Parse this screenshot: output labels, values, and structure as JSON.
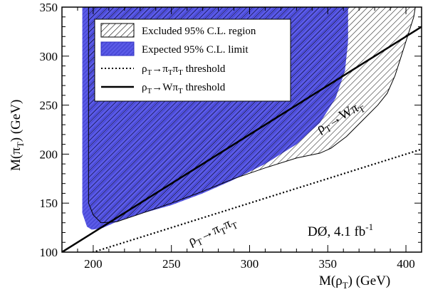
{
  "chart_data": {
    "type": "area",
    "xlim": [
      180,
      410
    ],
    "ylim": [
      100,
      350
    ],
    "x_ticks": [
      "200",
      "250",
      "300",
      "350",
      "400"
    ],
    "y_ticks": [
      "100",
      "150",
      "200",
      "250",
      "300",
      "350"
    ],
    "xlabel": {
      "main": "M(ρ",
      "sub": "T",
      "tail": ") (GeV)"
    },
    "ylabel": {
      "main": "M(π",
      "sub": "T",
      "tail": ") (GeV)"
    },
    "legend_position": "top-left",
    "legend": [
      {
        "label": "Excluded 95% C.L. region",
        "style": "hatched"
      },
      {
        "label": "Expected 95% C.L. limit",
        "style": "blue-fill"
      },
      {
        "main": "ρ",
        "sub1": "T",
        "mid": "→π",
        "sub2": "T",
        "mid2": "π",
        "sub3": "T",
        "tail": " threshold",
        "style": "dotted"
      },
      {
        "main": "ρ",
        "sub1": "T",
        "mid": "→Wπ",
        "sub2": "T",
        "tail": " threshold",
        "style": "solid"
      }
    ],
    "annotations": {
      "experiment": {
        "main": "DØ, 4.1 fb",
        "sup": "-1"
      },
      "w_threshold": {
        "main": "ρ",
        "sub1": "T",
        "arrow": "→Wπ",
        "sub2": "T"
      },
      "pipi_threshold": {
        "main": "ρ",
        "sub1": "T",
        "arrow": "→π",
        "sub2": "T",
        "mid": "π",
        "sub3": "T"
      }
    },
    "series": [
      {
        "name": "Expected 95% C.L. limit",
        "color": "#5050e0",
        "points": [
          [
            193,
            350
          ],
          [
            193,
            140
          ],
          [
            196,
            126
          ],
          [
            199,
            123
          ],
          [
            205,
            124
          ],
          [
            215,
            131
          ],
          [
            230,
            139
          ],
          [
            250,
            148
          ],
          [
            270,
            160
          ],
          [
            290,
            174
          ],
          [
            310,
            190
          ],
          [
            330,
            210
          ],
          [
            345,
            232
          ],
          [
            355,
            257
          ],
          [
            361,
            285
          ],
          [
            363,
            315
          ],
          [
            363,
            350
          ]
        ]
      },
      {
        "name": "Excluded 95% C.L. region",
        "color": "#000000",
        "points": [
          [
            197,
            350
          ],
          [
            197,
            150
          ],
          [
            200,
            138
          ],
          [
            205,
            130
          ],
          [
            215,
            131
          ],
          [
            230,
            139
          ],
          [
            250,
            150
          ],
          [
            270,
            162
          ],
          [
            290,
            175
          ],
          [
            310,
            186
          ],
          [
            330,
            196
          ],
          [
            345,
            201
          ],
          [
            352,
            206
          ],
          [
            362,
            218
          ],
          [
            372,
            234
          ],
          [
            382,
            250
          ],
          [
            388,
            262
          ],
          [
            393,
            280
          ],
          [
            397,
            300
          ],
          [
            401,
            320
          ],
          [
            405,
            340
          ],
          [
            406,
            350
          ]
        ]
      },
      {
        "name": "ρT→WπT threshold",
        "style": "solid",
        "points": [
          [
            180,
            100
          ],
          [
            410,
            330
          ]
        ]
      },
      {
        "name": "ρT→πTπT threshold",
        "style": "dotted",
        "points": [
          [
            180,
            90
          ],
          [
            410,
            205
          ]
        ]
      }
    ]
  }
}
